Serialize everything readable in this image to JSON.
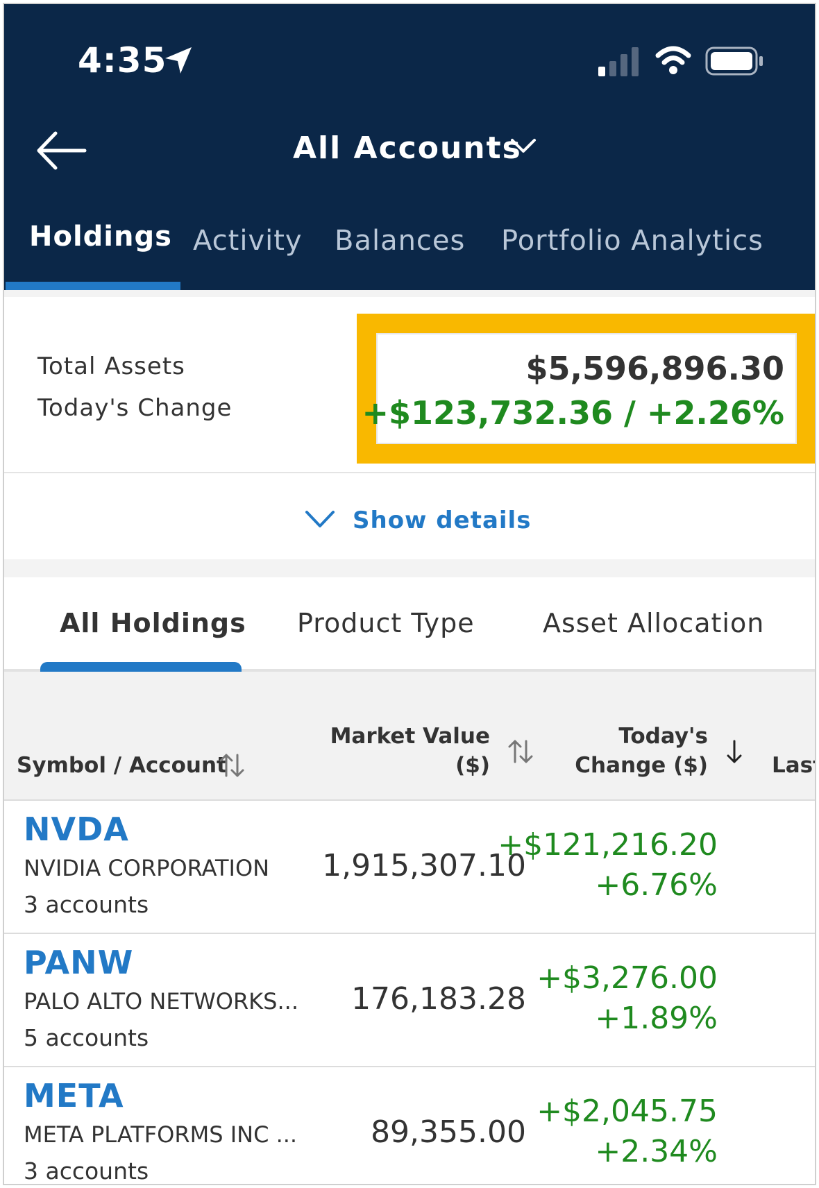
{
  "status_bar": {
    "time": "4:35"
  },
  "header": {
    "title": "All Accounts",
    "tabs": [
      {
        "label": "Holdings",
        "active": true
      },
      {
        "label": "Activity"
      },
      {
        "label": "Balances"
      },
      {
        "label": "Portfolio Analytics"
      }
    ]
  },
  "summary": {
    "total_assets_label": "Total Assets",
    "todays_change_label": "Today's Change",
    "total_assets_value": "$5,596,896.30",
    "todays_change_value": "+$123,732.36 / +2.26%",
    "show_details": "Show details"
  },
  "subtabs": [
    {
      "label": "All Holdings",
      "active": true
    },
    {
      "label": "Product Type"
    },
    {
      "label": "Asset Allocation"
    }
  ],
  "table": {
    "col_symbol": "Symbol / Account",
    "col_market_value_1": "Market Value",
    "col_market_value_2": "($)",
    "col_change_1": "Today's",
    "col_change_2": "Change ($)",
    "col_last": "Last",
    "rows": [
      {
        "symbol": "NVDA",
        "name": "NVIDIA CORPORATION",
        "accounts": "3 accounts",
        "market_value": "1,915,307.10",
        "change_amount": "+$121,216.20",
        "change_percent": "+6.76%"
      },
      {
        "symbol": "PANW",
        "name": "PALO ALTO NETWORKS...",
        "accounts": "5 accounts",
        "market_value": "176,183.28",
        "change_amount": "+$3,276.00",
        "change_percent": "+1.89%"
      },
      {
        "symbol": "META",
        "name": "META PLATFORMS INC ...",
        "accounts": "3 accounts",
        "market_value": "89,355.00",
        "change_amount": "+$2,045.75",
        "change_percent": "+2.34%"
      }
    ]
  },
  "colors": {
    "header_bg": "#0b2748",
    "accent_blue": "#2279c6",
    "positive_green": "#1f8a1f",
    "highlight_yellow": "#f9b800"
  }
}
